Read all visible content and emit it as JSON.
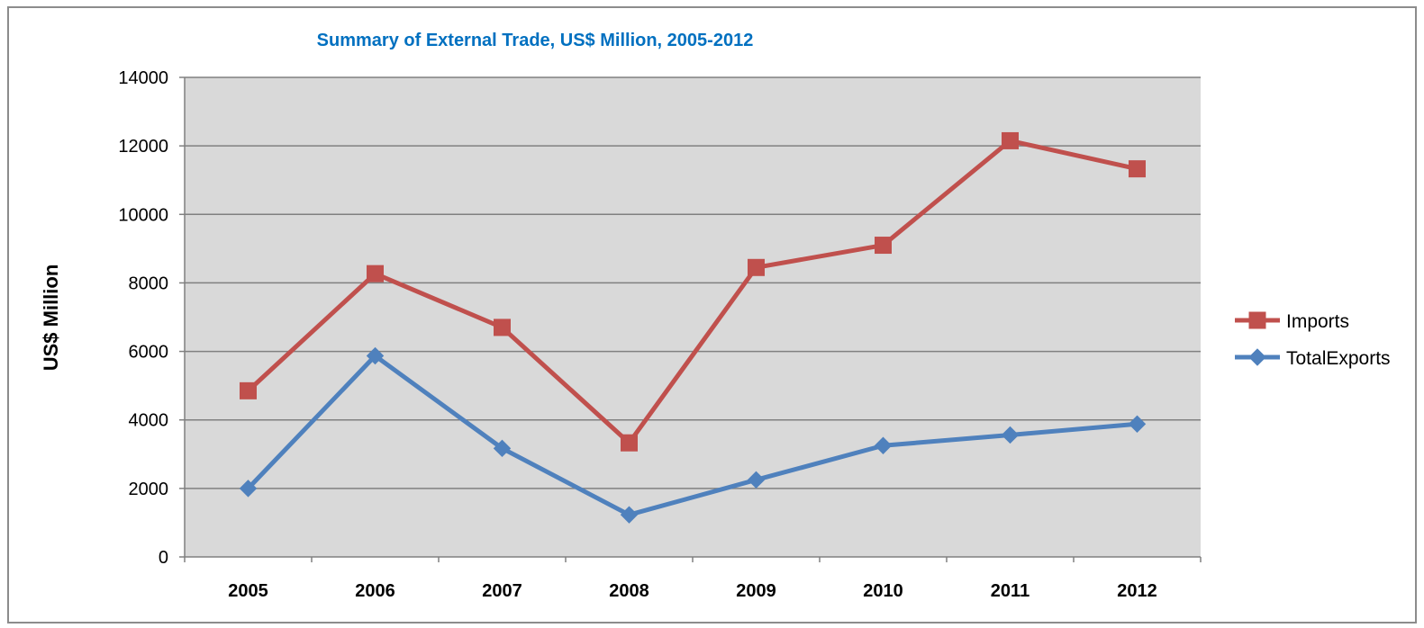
{
  "chart_data": {
    "type": "line",
    "title": "Summary of External Trade, US$ Million, 2005-2012",
    "ylabel": "US$ Million",
    "xlabel": "",
    "categories": [
      "2005",
      "2006",
      "2007",
      "2008",
      "2009",
      "2010",
      "2011",
      "2012"
    ],
    "ylim": [
      0,
      14000
    ],
    "yticks": [
      "0",
      "2000",
      "4000",
      "6000",
      "8000",
      "10000",
      "12000",
      "14000"
    ],
    "grid": true,
    "legend_position": "right",
    "series": [
      {
        "name": "Imports",
        "marker": "square",
        "color": "#C0504D",
        "values": [
          4850,
          8270,
          6700,
          3330,
          8450,
          9100,
          12150,
          11330
        ]
      },
      {
        "name": "TotalExports",
        "marker": "diamond",
        "color": "#4F81BD",
        "values": [
          2000,
          5870,
          3170,
          1230,
          2250,
          3250,
          3560,
          3880
        ]
      }
    ],
    "colors": {
      "title": "#0070C0",
      "plot_background": "#D9D9D9",
      "gridline": "#808080"
    }
  }
}
